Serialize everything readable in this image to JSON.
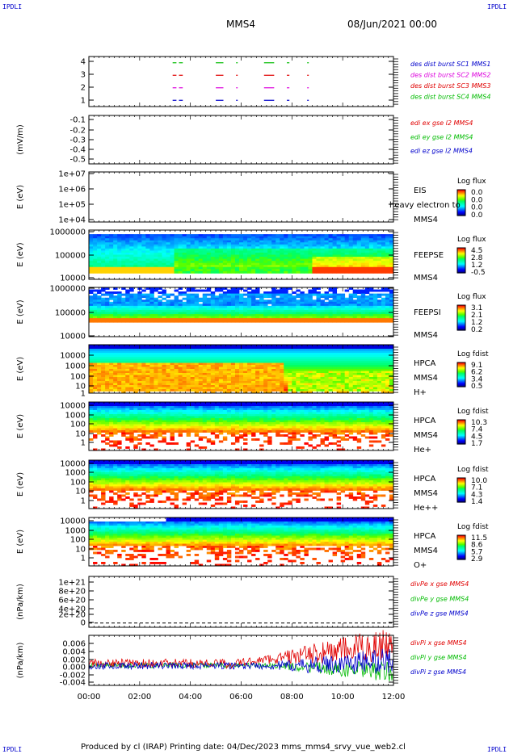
{
  "corner_labels": {
    "tl": "IPDLI",
    "tr": "IPDLI",
    "bl": "IPDLI",
    "br": "IPDLI"
  },
  "header": {
    "spacecraft": "MMS4",
    "date": "08/Jun/2021 00:00"
  },
  "footer": {
    "text": "Produced by cl (IRAP)    Printing date: 04/Dec/2023    mms_mms4_srvy_vue_web2.cl"
  },
  "time_axis": {
    "ticks": [
      "00:00",
      "02:00",
      "04:00",
      "06:00",
      "08:00",
      "10:00",
      "12:00"
    ]
  },
  "colors": {
    "red": "#e00000",
    "green": "#00bb00",
    "blue": "#0000cc",
    "magenta": "#dd00dd"
  },
  "chart_data": [
    {
      "type": "scatter",
      "id": "burst",
      "yticks": [
        "4",
        "3",
        "2",
        "1"
      ],
      "ylim": [
        0.5,
        4.5
      ],
      "legend": [
        {
          "text": "des dist burst SC1 MMS1",
          "color": "#0000cc"
        },
        {
          "text": "des dist burst SC2 MMS2",
          "color": "#dd00dd"
        },
        {
          "text": "des dist burst SC3 MMS3",
          "color": "#e00000"
        },
        {
          "text": "des dist burst SC4 MMS4",
          "color": "#00bb00"
        }
      ],
      "series": [
        {
          "level": 4,
          "color": "#00bb00",
          "intervals": [
            [
              3.3,
              3.45
            ],
            [
              3.55,
              3.7
            ],
            [
              5.0,
              5.3
            ],
            [
              5.8,
              5.85
            ],
            [
              6.9,
              7.3
            ],
            [
              7.8,
              7.9
            ],
            [
              8.6,
              8.65
            ]
          ]
        },
        {
          "level": 3,
          "color": "#e00000",
          "intervals": [
            [
              3.3,
              3.45
            ],
            [
              3.55,
              3.7
            ],
            [
              5.0,
              5.3
            ],
            [
              5.8,
              5.85
            ],
            [
              6.9,
              7.3
            ],
            [
              7.8,
              7.9
            ],
            [
              8.6,
              8.65
            ]
          ]
        },
        {
          "level": 2,
          "color": "#dd00dd",
          "intervals": [
            [
              3.3,
              3.45
            ],
            [
              3.55,
              3.7
            ],
            [
              5.0,
              5.3
            ],
            [
              5.8,
              5.85
            ],
            [
              6.9,
              7.3
            ],
            [
              7.8,
              7.9
            ],
            [
              8.6,
              8.65
            ]
          ]
        },
        {
          "level": 1,
          "color": "#0000cc",
          "intervals": [
            [
              3.3,
              3.45
            ],
            [
              3.55,
              3.7
            ],
            [
              5.0,
              5.3
            ],
            [
              5.8,
              5.85
            ],
            [
              6.9,
              7.3
            ],
            [
              7.8,
              7.9
            ],
            [
              8.6,
              8.65
            ]
          ]
        }
      ]
    },
    {
      "type": "line",
      "id": "edi",
      "ylabel": "(mV/m)",
      "yticks": [
        "-0.1",
        "-0.2",
        "-0.3",
        "-0.4",
        "-0.5"
      ],
      "ylim": [
        -0.55,
        -0.05
      ],
      "legend": [
        {
          "text": "edi ex gse l2 MMS4",
          "color": "#e00000"
        },
        {
          "text": "edi ey gse l2 MMS4",
          "color": "#00bb00"
        },
        {
          "text": "edi ez gse l2 MMS4",
          "color": "#0000cc"
        }
      ]
    },
    {
      "type": "heatmap",
      "id": "eis",
      "ylabel": "E (eV)",
      "yticks": [
        "1e+07",
        "1e+06",
        "1e+05",
        "1e+04"
      ],
      "ylim": [
        10000.0,
        10000000.0
      ],
      "side_labels": [
        "EIS",
        "heavy electron to",
        "MMS4"
      ],
      "colorbar": {
        "title": "Log flux",
        "ticks": [
          "0.0",
          "0.0",
          "0.0",
          "0.0"
        ]
      }
    },
    {
      "type": "heatmap",
      "id": "feepse",
      "ylabel": "E (eV)",
      "yticks": [
        "1000000",
        "100000",
        "10000"
      ],
      "ylim": [
        10000.0,
        1000000.0
      ],
      "side_labels": [
        "FEEPSE",
        "MMS4"
      ],
      "colorbar": {
        "title": "Log flux",
        "ticks": [
          "4.5",
          "2.8",
          "1.2",
          "-0.5"
        ]
      }
    },
    {
      "type": "heatmap",
      "id": "feepsi",
      "ylabel": "E (eV)",
      "yticks": [
        "1000000",
        "100000",
        "10000"
      ],
      "ylim": [
        10000.0,
        1000000.0
      ],
      "side_labels": [
        "FEEPSI",
        "MMS4"
      ],
      "colorbar": {
        "title": "Log flux",
        "ticks": [
          "3.1",
          "2.1",
          "1.2",
          "0.2"
        ]
      }
    },
    {
      "type": "heatmap",
      "id": "hpca-h",
      "ylabel": "E (eV)",
      "yticks": [
        "10000",
        "1000",
        "100",
        "10",
        "1"
      ],
      "ylim": [
        1,
        40000
      ],
      "side_labels": [
        "HPCA",
        "MMS4",
        "H+"
      ],
      "colorbar": {
        "title": "Log fdist",
        "ticks": [
          "9.1",
          "6.2",
          "3.4",
          "0.5"
        ]
      }
    },
    {
      "type": "heatmap",
      "id": "hpca-he",
      "ylabel": "E (eV)",
      "yticks": [
        "10000",
        "1000",
        "100",
        "10",
        "1"
      ],
      "ylim": [
        1,
        40000
      ],
      "side_labels": [
        "HPCA",
        "MMS4",
        "He+"
      ],
      "colorbar": {
        "title": "Log fdist",
        "ticks": [
          "10.3",
          "7.4",
          "4.5",
          "1.7"
        ]
      }
    },
    {
      "type": "heatmap",
      "id": "hpca-hepp",
      "ylabel": "E (eV)",
      "yticks": [
        "10000",
        "1000",
        "100",
        "10",
        "1"
      ],
      "ylim": [
        1,
        40000
      ],
      "side_labels": [
        "HPCA",
        "MMS4",
        "He++"
      ],
      "colorbar": {
        "title": "Log fdist",
        "ticks": [
          "10.0",
          "7.1",
          "4.3",
          "1.4"
        ]
      }
    },
    {
      "type": "heatmap",
      "id": "hpca-o",
      "ylabel": "E (eV)",
      "yticks": [
        "10000",
        "1000",
        "100",
        "10",
        "1"
      ],
      "ylim": [
        1,
        40000
      ],
      "side_labels": [
        "HPCA",
        "MMS4",
        "O+"
      ],
      "colorbar": {
        "title": "Log fdist",
        "ticks": [
          "11.5",
          "8.6",
          "5.7",
          "2.9"
        ]
      }
    },
    {
      "type": "line",
      "id": "divpe",
      "ylabel": "(nPa/km)",
      "yticks": [
        "1e+21",
        "8e+20",
        "6e+20",
        "4e+20",
        "2e+20",
        "0"
      ],
      "ylim": [
        -1e+20,
        1.1e+21
      ],
      "legend": [
        {
          "text": "divPe x gse MMS4",
          "color": "#e00000"
        },
        {
          "text": "divPe y gse MMS4",
          "color": "#00bb00"
        },
        {
          "text": "divPe z gse MMS4",
          "color": "#0000cc"
        }
      ]
    },
    {
      "type": "line",
      "id": "divpi",
      "ylabel": "(nPa/km)",
      "yticks": [
        "0.006",
        "0.004",
        "0.002",
        "0.000",
        "-0.002",
        "-0.004"
      ],
      "ylim": [
        -0.005,
        0.007
      ],
      "legend": [
        {
          "text": "divPi x gse MMS4",
          "color": "#e00000"
        },
        {
          "text": "divPi y gse MMS4",
          "color": "#00bb00"
        },
        {
          "text": "divPi z gse MMS4",
          "color": "#0000cc"
        }
      ]
    }
  ]
}
